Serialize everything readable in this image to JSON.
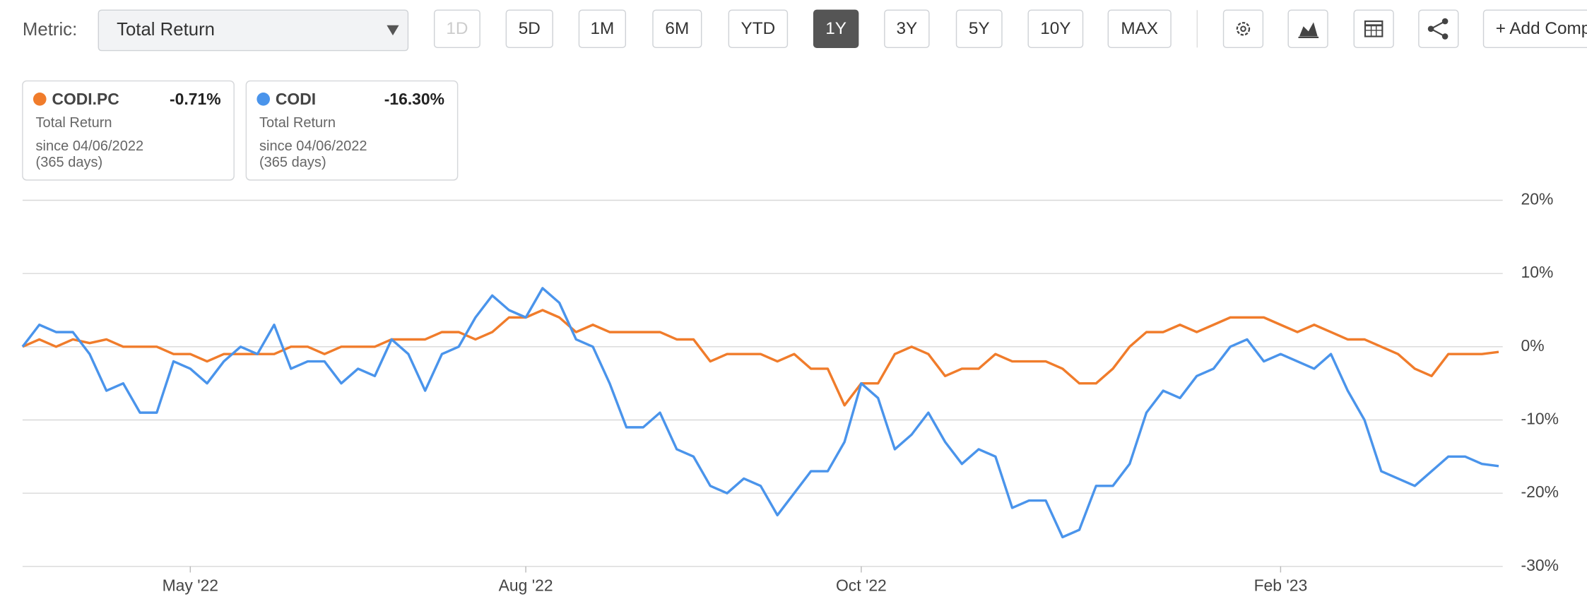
{
  "toolbar": {
    "metric_label": "Metric:",
    "metric_value": "Total Return",
    "periods": [
      "1D",
      "5D",
      "1M",
      "6M",
      "YTD",
      "1Y",
      "3Y",
      "5Y",
      "10Y",
      "MAX"
    ],
    "active_period": "1Y",
    "disabled_periods": [
      "1D"
    ],
    "add_button": "+ Add Comparison"
  },
  "legend_cards": [
    {
      "change": "-0.71%",
      "metric": "Total Return",
      "since": "since 04/06/2022",
      "days": "(365 days)"
    },
    {
      "change": "-16.30%",
      "metric": "Total Return",
      "since": "since 04/06/2022",
      "days": "(365 days)"
    }
  ],
  "chart_data": {
    "type": "line",
    "categories": [
      null,
      null,
      null,
      null,
      null,
      null,
      null,
      null,
      null,
      null,
      "May '22",
      null,
      null,
      null,
      null,
      null,
      null,
      null,
      null,
      null,
      null,
      null,
      null,
      null,
      null,
      null,
      null,
      null,
      null,
      null,
      "Aug '22",
      null,
      null,
      null,
      null,
      null,
      null,
      null,
      null,
      null,
      null,
      null,
      null,
      null,
      null,
      null,
      null,
      null,
      null,
      null,
      "Oct '22",
      null,
      null,
      null,
      null,
      null,
      null,
      null,
      null,
      null,
      null,
      null,
      null,
      null,
      null,
      null,
      null,
      null,
      null,
      null,
      null,
      null,
      null,
      null,
      null,
      "Feb '23",
      null,
      null,
      null,
      null,
      null,
      null,
      null,
      null,
      null,
      null,
      null,
      null,
      null
    ],
    "series": [
      {
        "name": "CODI.PC",
        "color": "#f07c2b",
        "values": [
          0,
          1,
          0,
          1,
          0.5,
          1,
          0,
          0,
          0,
          -1,
          -1,
          -2,
          -1,
          -1,
          -1,
          -1,
          0,
          0,
          -1,
          0,
          0,
          0,
          1,
          1,
          1,
          2,
          2,
          1,
          2,
          4,
          4,
          5,
          4,
          2,
          3,
          2,
          2,
          2,
          2,
          1,
          1,
          -2,
          -1,
          -1,
          -1,
          -2,
          -1,
          -3,
          -3,
          -8,
          -5,
          -5,
          -1,
          0,
          -1,
          -4,
          -3,
          -3,
          -1,
          -2,
          -2,
          -2,
          -3,
          -5,
          -5,
          -3,
          0,
          2,
          2,
          3,
          2,
          3,
          4,
          4,
          4,
          3,
          2,
          3,
          2,
          1,
          1,
          0,
          -1,
          -3,
          -4,
          -1,
          -1,
          -1,
          -0.71
        ]
      },
      {
        "name": "CODI",
        "color": "#4a94eb",
        "values": [
          0,
          3,
          2,
          2,
          -1,
          -6,
          -5,
          -9,
          -9,
          -2,
          -3,
          -5,
          -2,
          0,
          -1,
          3,
          -3,
          -2,
          -2,
          -5,
          -3,
          -4,
          1,
          -1,
          -6,
          -1,
          0,
          4,
          7,
          5,
          4,
          8,
          6,
          1,
          0,
          -5,
          -11,
          -11,
          -9,
          -14,
          -15,
          -19,
          -20,
          -18,
          -19,
          -23,
          -20,
          -17,
          -17,
          -13,
          -5,
          -7,
          -14,
          -12,
          -9,
          -13,
          -16,
          -14,
          -15,
          -22,
          -21,
          -21,
          -26,
          -25,
          -19,
          -19,
          -16,
          -9,
          -6,
          -7,
          -4,
          -3,
          0,
          1,
          -2,
          -1,
          -2,
          -3,
          -1,
          -6,
          -10,
          -17,
          -18,
          -19,
          -17,
          -15,
          -15,
          -16,
          -16.3
        ]
      }
    ],
    "ylim": [
      -30,
      20
    ],
    "yticks": [
      {
        "value": 20,
        "label": "20%"
      },
      {
        "value": 10,
        "label": "10%"
      },
      {
        "value": 0,
        "label": "0%"
      },
      {
        "value": -10,
        "label": "-10%"
      },
      {
        "value": -20,
        "label": "-20%"
      },
      {
        "value": -30,
        "label": "-30%"
      }
    ],
    "grid": true
  }
}
